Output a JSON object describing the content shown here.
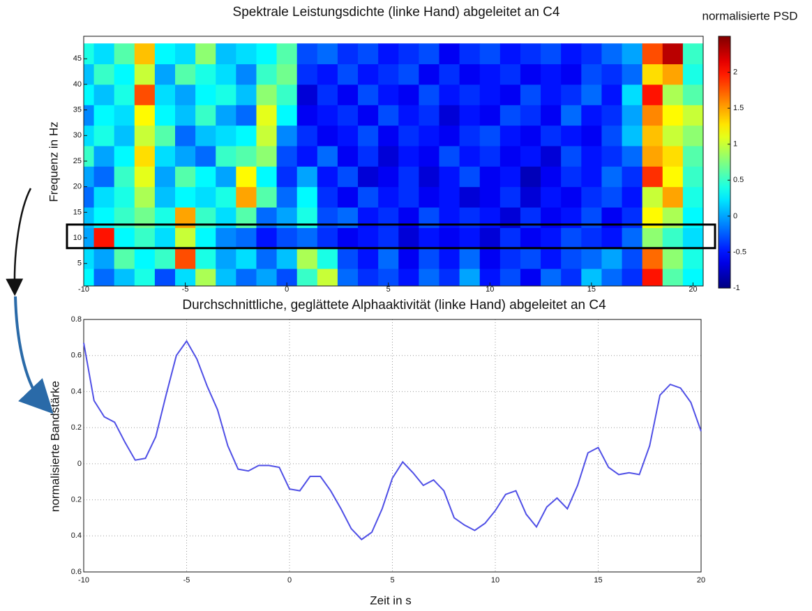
{
  "chart_data": [
    {
      "type": "heatmap",
      "title": "Spektrale Leistungsdichte (linke Hand) abgeleitet an C4",
      "y_label": "Frequenz in Hz",
      "colorbar_label": "normalisierte PSD",
      "colormap": "jet",
      "x": [
        -10,
        -9,
        -8,
        -7,
        -6,
        -5,
        -4,
        -3,
        -2,
        -1,
        0,
        1,
        2,
        3,
        4,
        5,
        6,
        7,
        8,
        9,
        10,
        11,
        12,
        13,
        14,
        15,
        16,
        17,
        18,
        19,
        20
      ],
      "y": [
        2,
        6,
        10,
        14,
        18,
        22,
        26,
        30,
        34,
        38,
        42,
        46
      ],
      "z": [
        [
          0.3,
          -0.2,
          0.1,
          0.4,
          -0.3,
          0.2,
          0.9,
          0.1,
          -0.2,
          0.0,
          -0.3,
          0.5,
          1.0,
          -0.2,
          -0.4,
          -0.3,
          -0.5,
          -0.2,
          -0.4,
          0.0,
          -0.5,
          -0.3,
          -0.6,
          -0.2,
          -0.4,
          0.1,
          -0.2,
          -0.4,
          2.0,
          0.6,
          0.3
        ],
        [
          0.2,
          0.0,
          0.6,
          0.3,
          0.5,
          1.8,
          0.4,
          0.0,
          0.2,
          -0.2,
          0.1,
          0.9,
          0.4,
          -0.3,
          -0.5,
          -0.2,
          -0.6,
          -0.3,
          -0.5,
          -0.2,
          -0.6,
          -0.4,
          -0.3,
          -0.5,
          -0.3,
          -0.2,
          0.0,
          -0.3,
          1.7,
          0.8,
          0.4
        ],
        [
          0.0,
          2.0,
          0.3,
          0.5,
          0.2,
          1.0,
          0.3,
          -0.1,
          -0.2,
          -0.5,
          -0.3,
          -0.2,
          -0.4,
          -0.6,
          -0.5,
          -0.4,
          -0.7,
          -0.5,
          -0.6,
          -0.5,
          -0.7,
          -0.4,
          -0.6,
          -0.5,
          -0.3,
          -0.4,
          -0.5,
          -0.2,
          0.8,
          0.5,
          0.2
        ],
        [
          0.1,
          0.3,
          0.5,
          0.7,
          0.4,
          1.5,
          0.5,
          0.2,
          0.6,
          -0.2,
          0.0,
          0.4,
          -0.3,
          -0.2,
          -0.5,
          -0.4,
          -0.6,
          -0.3,
          -0.5,
          -0.4,
          -0.5,
          -0.7,
          -0.4,
          -0.6,
          -0.5,
          -0.3,
          -0.6,
          -0.4,
          1.2,
          0.9,
          0.3
        ],
        [
          -0.2,
          0.2,
          0.4,
          0.9,
          0.1,
          0.3,
          0.2,
          0.4,
          1.5,
          0.6,
          -0.2,
          0.3,
          -0.4,
          -0.6,
          -0.3,
          -0.5,
          -0.4,
          -0.6,
          -0.5,
          -0.7,
          -0.6,
          -0.4,
          -0.7,
          -0.5,
          -0.6,
          -0.4,
          -0.3,
          -0.5,
          1.0,
          1.5,
          0.4
        ],
        [
          0.0,
          -0.2,
          0.5,
          1.1,
          0.0,
          0.6,
          0.3,
          0.0,
          1.2,
          0.3,
          -0.4,
          0.0,
          -0.5,
          -0.3,
          -0.7,
          -0.6,
          -0.4,
          -0.7,
          -0.5,
          -0.3,
          -0.6,
          -0.5,
          -0.8,
          -0.6,
          -0.4,
          -0.5,
          -0.2,
          -0.4,
          1.9,
          1.2,
          0.5
        ],
        [
          0.5,
          0.0,
          0.3,
          1.3,
          0.2,
          0.0,
          -0.2,
          0.5,
          0.6,
          0.8,
          -0.3,
          -0.5,
          -0.2,
          -0.6,
          -0.4,
          -0.7,
          -0.5,
          -0.6,
          -0.3,
          -0.5,
          -0.4,
          -0.6,
          -0.5,
          -0.7,
          -0.3,
          -0.5,
          -0.4,
          -0.2,
          1.5,
          1.3,
          0.6
        ],
        [
          0.2,
          0.4,
          0.1,
          1.0,
          0.6,
          -0.2,
          0.1,
          0.2,
          0.3,
          1.0,
          -0.1,
          -0.4,
          -0.6,
          -0.5,
          -0.3,
          -0.6,
          -0.4,
          -0.5,
          -0.6,
          -0.4,
          -0.3,
          -0.5,
          -0.6,
          -0.4,
          -0.5,
          -0.6,
          -0.3,
          0.1,
          1.4,
          1.0,
          0.8
        ],
        [
          -0.1,
          0.3,
          0.2,
          1.2,
          0.3,
          0.1,
          0.5,
          0.0,
          -0.2,
          1.1,
          0.3,
          -0.6,
          -0.5,
          -0.4,
          -0.6,
          -0.3,
          -0.5,
          -0.4,
          -0.7,
          -0.5,
          -0.6,
          -0.3,
          -0.4,
          -0.6,
          -0.2,
          -0.5,
          -0.4,
          0.0,
          1.6,
          1.2,
          1.0
        ],
        [
          0.3,
          0.1,
          0.4,
          1.8,
          0.2,
          0.0,
          0.3,
          0.4,
          0.1,
          0.8,
          0.5,
          -0.7,
          -0.4,
          -0.6,
          -0.3,
          -0.5,
          -0.6,
          -0.3,
          -0.5,
          -0.4,
          -0.5,
          -0.6,
          -0.3,
          -0.5,
          -0.4,
          -0.2,
          -0.5,
          0.2,
          2.0,
          0.9,
          0.6
        ],
        [
          0.1,
          0.5,
          0.3,
          1.0,
          0.0,
          0.6,
          0.4,
          0.2,
          -0.1,
          0.5,
          0.7,
          -0.4,
          -0.5,
          -0.3,
          -0.5,
          -0.4,
          -0.3,
          -0.6,
          -0.4,
          -0.6,
          -0.5,
          -0.4,
          -0.6,
          -0.5,
          -0.6,
          -0.3,
          -0.4,
          -0.2,
          1.3,
          1.5,
          0.4
        ],
        [
          0.4,
          0.2,
          0.6,
          1.4,
          0.3,
          0.2,
          0.8,
          0.1,
          0.2,
          0.3,
          0.6,
          -0.3,
          -0.2,
          -0.4,
          -0.3,
          -0.5,
          -0.4,
          -0.3,
          -0.6,
          -0.4,
          -0.3,
          -0.5,
          -0.4,
          -0.3,
          -0.5,
          -0.4,
          -0.2,
          0.0,
          1.8,
          2.3,
          0.5
        ]
      ],
      "xlim": [
        -10,
        20.5
      ],
      "xticks": [
        -10,
        -5,
        0,
        5,
        10,
        15,
        20
      ],
      "ylim": [
        0.6,
        49.4
      ],
      "yticks": [
        5,
        10,
        15,
        20,
        25,
        30,
        35,
        40,
        45
      ],
      "zlim": [
        -1,
        2.5
      ],
      "colorbar_ticks": [
        -1,
        -0.5,
        0,
        0.5,
        1,
        1.5,
        2
      ],
      "highlight_band": [
        8,
        12.6
      ]
    },
    {
      "type": "line",
      "title": "Durchschnittliche, geglättete Alphaaktivität (linke Hand) abgeleitet an C4",
      "x_label": "Zeit in s",
      "y_label": "normalisierte Bandstärke",
      "x": [
        -10,
        -9.5,
        -9,
        -8.5,
        -8,
        -7.5,
        -7,
        -6.5,
        -6,
        -5.5,
        -5,
        -4.5,
        -4,
        -3.5,
        -3,
        -2.5,
        -2,
        -1.5,
        -1,
        -0.5,
        0,
        0.5,
        1,
        1.5,
        2,
        2.5,
        3,
        3.5,
        4,
        4.5,
        5,
        5.5,
        6,
        6.5,
        7,
        7.5,
        8,
        8.5,
        9,
        9.5,
        10,
        10.5,
        11,
        11.5,
        12,
        12.5,
        13,
        13.5,
        14,
        14.5,
        15,
        15.5,
        16,
        16.5,
        17,
        17.5,
        18,
        18.5,
        19,
        19.5,
        20
      ],
      "series": [
        {
          "color": "#4f4fe6",
          "values": [
            0.67,
            0.35,
            0.26,
            0.23,
            0.12,
            0.02,
            0.03,
            0.15,
            0.38,
            0.6,
            0.68,
            0.58,
            0.43,
            0.3,
            0.1,
            -0.03,
            -0.04,
            -0.01,
            -0.01,
            -0.02,
            -0.14,
            -0.15,
            -0.07,
            -0.07,
            -0.15,
            -0.25,
            -0.36,
            -0.42,
            -0.38,
            -0.25,
            -0.08,
            0.01,
            -0.05,
            -0.12,
            -0.09,
            -0.15,
            -0.3,
            -0.34,
            -0.37,
            -0.33,
            -0.26,
            -0.17,
            -0.15,
            -0.28,
            -0.35,
            -0.24,
            -0.19,
            -0.25,
            -0.12,
            0.06,
            0.09,
            -0.02,
            -0.06,
            -0.05,
            -0.06,
            0.1,
            0.38,
            0.44,
            0.42,
            0.34,
            0.18
          ]
        }
      ],
      "xlim": [
        -10,
        20
      ],
      "xticks": [
        -10,
        -5,
        0,
        5,
        10,
        15,
        20
      ],
      "ylim": [
        -0.6,
        0.8
      ],
      "yticks": [
        {
          "value": 0.8,
          "label": "0.8"
        },
        {
          "value": 0.6,
          "label": "0.6"
        },
        {
          "value": 0.4,
          "label": "0.4"
        },
        {
          "value": 0.2,
          "label": "0.2"
        },
        {
          "value": 0,
          "label": "0"
        },
        {
          "value": -0.2,
          "label": "0.2"
        },
        {
          "value": -0.4,
          "label": "0.4"
        },
        {
          "value": -0.6,
          "label": "0.6"
        }
      ],
      "grid": true
    }
  ]
}
